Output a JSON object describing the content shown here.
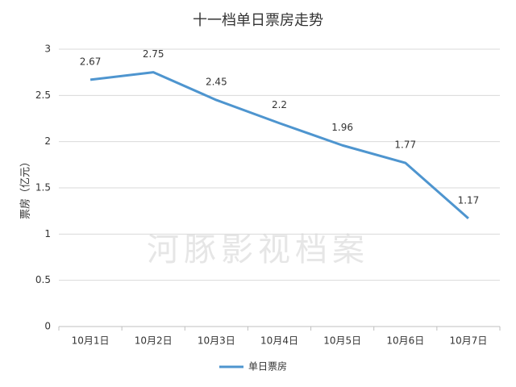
{
  "chart_data": {
    "type": "line",
    "title": "十一档单日票房走势",
    "y_label": "票房（亿元）",
    "watermark": "河豚影视档案",
    "categories": [
      "10月1日",
      "10月2日",
      "10月3日",
      "10月4日",
      "10月5日",
      "10月6日",
      "10月7日"
    ],
    "series": [
      {
        "name": "单日票房",
        "color": "#4e95cf",
        "values": [
          2.67,
          2.75,
          2.45,
          2.2,
          1.96,
          1.77,
          1.17
        ]
      }
    ],
    "ylim": [
      0,
      3
    ],
    "yticks": [
      0,
      0.5,
      1,
      1.5,
      2,
      2.5,
      3
    ],
    "grid": true,
    "legend": "bottom"
  }
}
